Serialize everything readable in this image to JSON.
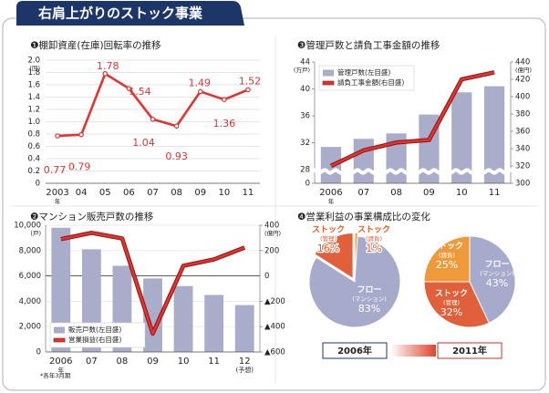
{
  "header": {
    "title": "右肩上がりのストック事業"
  },
  "chart_data": [
    {
      "type": "line",
      "title": "❶棚卸資産(在庫)回転率の推移",
      "y_unit": "(回)",
      "x_unit": "年",
      "categories": [
        "2003",
        "04",
        "05",
        "06",
        "07",
        "08",
        "09",
        "10",
        "11"
      ],
      "values": [
        0.77,
        0.79,
        1.78,
        1.54,
        1.04,
        0.93,
        1.49,
        1.36,
        1.52
      ],
      "color": "#e2332f",
      "ylim": [
        0,
        2
      ],
      "yticks": [
        0,
        0.2,
        0.4,
        0.6,
        0.8,
        {
          "value": 1,
          "label": "1.0"
        },
        1.2,
        1.4,
        1.6,
        1.8,
        {
          "value": 2,
          "label": "2.0"
        }
      ],
      "grid": true
    },
    {
      "type": "bar_line",
      "title": "❸管理戸数と請負工事金額の推移",
      "y_unit": "(万戸)",
      "y2_unit": "(億円)",
      "x_unit": "年",
      "categories": [
        "2006",
        "07",
        "08",
        "09",
        "10",
        "11"
      ],
      "series": [
        {
          "name": "管理戸数(左目盛)",
          "type": "bar",
          "color": "#a9adc9",
          "values": [
            31.4,
            32.6,
            33.4,
            36.2,
            39.5,
            40.4
          ]
        },
        {
          "name": "請負工事金額(右目盛)",
          "type": "line",
          "axis": "y2",
          "color": "#e2332f",
          "values": [
            320,
            338,
            347,
            350,
            420,
            428
          ]
        }
      ],
      "ylim": [
        26,
        44
      ],
      "yticks": [
        0,
        28,
        32,
        36,
        40,
        44
      ],
      "axis_break": true,
      "y2lim": [
        300,
        440
      ],
      "y2ticks": [
        300,
        320,
        340,
        360,
        380,
        400,
        420,
        440
      ],
      "legend": "top-left",
      "grid": false
    },
    {
      "type": "bar_line",
      "title": "❷マンション販売戸数の推移",
      "y_unit": "(戸)",
      "y2_unit": "(億円)",
      "x_unit": "年",
      "categories": [
        "2006",
        "07",
        "08",
        "09",
        "10",
        "11",
        "12"
      ],
      "forecast_label": "(予想)",
      "series": [
        {
          "name": "販売戸数(左目盛)",
          "type": "bar",
          "color": "#a9adc9",
          "values": [
            9800,
            8100,
            6800,
            5800,
            5200,
            4500,
            3700
          ]
        },
        {
          "name": "営業損益(右目盛)",
          "type": "line",
          "axis": "y2",
          "color": "#e2332f",
          "values": [
            290,
            340,
            296,
            -455,
            80,
            130,
            224
          ]
        }
      ],
      "ylim": [
        0,
        10000
      ],
      "yticks": [
        0,
        {
          "value": 2000,
          "label": "2,000"
        },
        {
          "value": 4000,
          "label": "4,000"
        },
        {
          "value": 6000,
          "label": "6,000"
        },
        {
          "value": 8000,
          "label": "8,000"
        },
        {
          "value": 10000,
          "label": "10,000"
        }
      ],
      "y2lim": [
        -600,
        400
      ],
      "y2ticks": [
        {
          "value": -600,
          "label": "▲600"
        },
        {
          "value": -400,
          "label": "▲400"
        },
        {
          "value": -200,
          "label": "▲200"
        },
        0,
        200,
        400
      ],
      "legend": "bottom-left",
      "grid": true,
      "footnote": "*各年3月期"
    },
    {
      "type": "pie",
      "title": "❹営業利益の事業構成比の変化",
      "pies": [
        {
          "name": "2006年",
          "categories": [
            "ストック",
            "ストック",
            "フロー"
          ],
          "subcategories": [
            "(管理)",
            "(請負)",
            "(マンション)"
          ],
          "values": [
            16,
            1,
            83
          ],
          "value_labels": [
            "16%",
            "1%",
            "83%"
          ],
          "colors": [
            "#e0603c",
            "#ef9a3a",
            "#a7abcb"
          ]
        },
        {
          "name": "2011年",
          "categories": [
            "フロー",
            "ストック",
            "ストック"
          ],
          "subcategories": [
            "(マンション)",
            "(管理)",
            "(請負)"
          ],
          "values": [
            43,
            32,
            25
          ],
          "value_labels": [
            "43%",
            "32%",
            "25%"
          ],
          "colors": [
            "#a7abcb",
            "#e0603c",
            "#ef9a3a"
          ]
        }
      ]
    }
  ]
}
